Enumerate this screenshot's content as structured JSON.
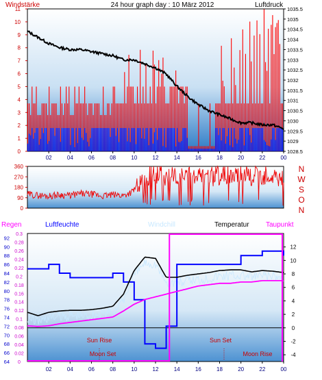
{
  "chart_data": [
    {
      "type": "bar",
      "panel": "wind",
      "title": "24 hour graph day : 10 März 2012",
      "ylabel_left": "Windstärke",
      "ylabel_right": "Luftdruck",
      "x_ticks": [
        "02",
        "04",
        "06",
        "08",
        "10",
        "12",
        "14",
        "16",
        "18",
        "20",
        "22",
        "00"
      ],
      "left_ticks": [
        "0",
        "1",
        "2",
        "3",
        "4",
        "5",
        "6",
        "7",
        "8",
        "9",
        "10",
        "11"
      ],
      "right_ticks": [
        "1028.5",
        "1029",
        "1029.5",
        "1030",
        "1030.5",
        "1031",
        "1031.5",
        "1032",
        "1032.5",
        "1033",
        "1033.5",
        "1034",
        "1034.5",
        "1035",
        "1035.5"
      ],
      "ylim_left": [
        0,
        11
      ],
      "ylim_right": [
        1028.5,
        1035.5
      ],
      "colors": {
        "gust": "#ff0000",
        "wind": "#0000ff",
        "pressure": "#000000"
      },
      "series": [
        {
          "name": "Luftdruck",
          "axis": "right",
          "x": [
            0,
            1,
            2,
            3,
            4,
            5,
            6,
            7,
            8,
            9,
            10,
            11,
            12,
            13,
            14,
            15,
            16,
            17,
            18,
            19,
            20,
            21,
            22,
            23,
            24
          ],
          "values": [
            1034.4,
            1034.1,
            1033.8,
            1033.6,
            1033.5,
            1033.5,
            1033.4,
            1033.3,
            1033.2,
            1033.0,
            1033.0,
            1032.8,
            1032.6,
            1032.3,
            1031.7,
            1031.2,
            1030.8,
            1030.5,
            1030.3,
            1030.1,
            1029.9,
            1029.9,
            1029.8,
            1029.8,
            1029.6
          ]
        }
      ]
    },
    {
      "type": "line",
      "panel": "direction",
      "right_labels": [
        "N",
        "W",
        "S",
        "O",
        "N"
      ],
      "left_ticks": [
        "0",
        "90",
        "180",
        "270",
        "360"
      ],
      "ylim": [
        0,
        360
      ],
      "series": [
        {
          "x": [
            0,
            1,
            2,
            3,
            4,
            5,
            6,
            7,
            8,
            9,
            10,
            11,
            12,
            13,
            14,
            15,
            16,
            17,
            18,
            19,
            20,
            21,
            22,
            23,
            24
          ],
          "values": [
            120,
            110,
            105,
            115,
            110,
            125,
            120,
            105,
            115,
            110,
            150,
            260,
            300,
            270,
            280,
            260,
            275,
            270,
            285,
            280,
            300,
            270,
            290,
            280,
            260
          ]
        }
      ]
    },
    {
      "type": "line",
      "panel": "weather",
      "legend": [
        "Regen",
        "Luftfeuchte",
        "Windchill",
        "Temperatur",
        "Taupunkt"
      ],
      "legend_colors": [
        "#ff00ff",
        "#0000ff",
        "#c8e8ff",
        "#000000",
        "#ff00ff"
      ],
      "humidity_ticks": [
        "64",
        "66",
        "68",
        "70",
        "72",
        "74",
        "76",
        "78",
        "80",
        "82",
        "84",
        "86",
        "88",
        "90",
        "92"
      ],
      "rain_ticks": [
        "0",
        "0.02",
        "0.04",
        "0.06",
        "0.08",
        "0.1",
        "0.12",
        "0.14",
        "0.16",
        "0.18",
        "0.2",
        "0.22",
        "0.24",
        "0.26",
        "0.28",
        "0.3"
      ],
      "temp_ticks": [
        "-4",
        "-2",
        "0",
        "2",
        "4",
        "6",
        "8",
        "10",
        "12"
      ],
      "humidity_range": [
        64,
        93
      ],
      "temp_range": [
        -5,
        14
      ],
      "x_ticks": [
        "02",
        "04",
        "06",
        "08",
        "10",
        "12",
        "14",
        "16",
        "18",
        "20",
        "22",
        "00"
      ],
      "annotations": {
        "sun_rise": "Sun Rise",
        "moon_set": "Moon Set",
        "sun_set": "Sun Set",
        "moon_rise": "Moon Rise"
      },
      "series": [
        {
          "name": "Luftfeuchte",
          "x": [
            0,
            1,
            2,
            3,
            4,
            5,
            6,
            7,
            8,
            9,
            10,
            11,
            12,
            13,
            14,
            15,
            16,
            17,
            18,
            19,
            20,
            21,
            22,
            23,
            24
          ],
          "values": [
            85,
            85,
            86,
            84,
            83,
            83,
            83,
            83,
            84,
            82,
            78,
            68,
            67,
            72,
            86,
            86,
            86,
            86,
            86,
            86,
            88,
            88,
            89,
            89,
            88
          ]
        },
        {
          "name": "Temperatur",
          "x": [
            0,
            1,
            2,
            3,
            4,
            5,
            6,
            7,
            8,
            9,
            10,
            11,
            12,
            13,
            14,
            15,
            16,
            17,
            18,
            19,
            20,
            21,
            22,
            23,
            24
          ],
          "values": [
            2.3,
            1.8,
            2.3,
            2.5,
            2.6,
            2.6,
            2.7,
            2.9,
            3.2,
            5.0,
            8.5,
            10.5,
            10.3,
            7.5,
            7.5,
            7.8,
            8.0,
            8.2,
            8.5,
            8.6,
            8.6,
            8.3,
            8.5,
            8.4,
            8.2
          ]
        },
        {
          "name": "Taupunkt",
          "x": [
            0,
            1,
            2,
            3,
            4,
            5,
            6,
            7,
            8,
            9,
            10,
            11,
            12,
            13,
            14,
            15,
            16,
            17,
            18,
            19,
            20,
            21,
            22,
            23,
            24
          ],
          "values": [
            0.3,
            0.2,
            0.3,
            0.6,
            0.8,
            1.0,
            1.2,
            1.4,
            1.6,
            2.5,
            3.5,
            4.2,
            4.6,
            5.0,
            5.4,
            5.8,
            6.2,
            6.4,
            6.6,
            6.6,
            6.8,
            6.8,
            7.0,
            7.0,
            7.0
          ]
        }
      ]
    }
  ]
}
